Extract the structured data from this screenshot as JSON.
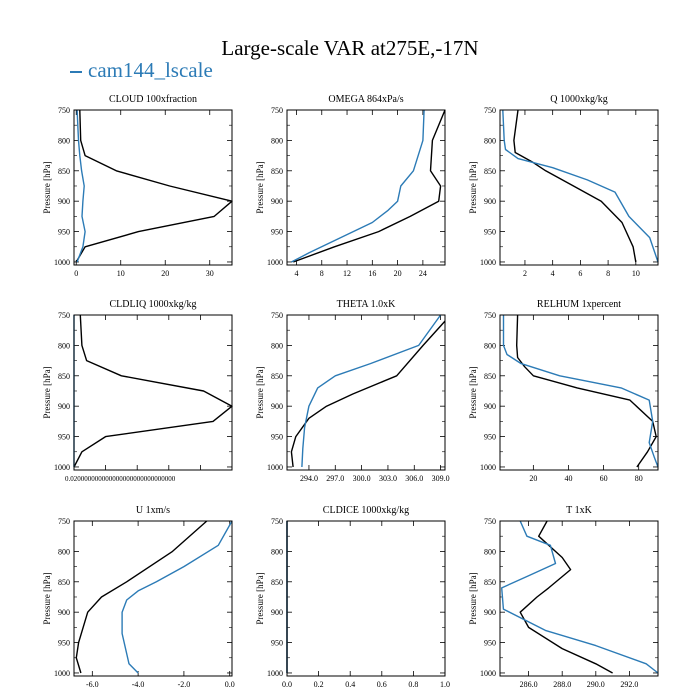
{
  "title": "Large-scale VAR at275E,-17N",
  "legend_label": "cam144_lscale",
  "colors": {
    "black_series": "#000000",
    "blue_series": "#2c7bb6"
  },
  "chart_data": [
    {
      "type": "line",
      "title": "CLOUD  100xfraction",
      "ylabel": "Pressure [hPa]",
      "ylim": [
        1005,
        750
      ],
      "yticks": [
        750,
        800,
        850,
        900,
        950,
        1000
      ],
      "xlim": [
        -0.5,
        35
      ],
      "xticks": [
        0,
        10,
        20,
        30
      ],
      "xticklabels": [
        "0",
        "10",
        "20",
        "30"
      ],
      "series": [
        {
          "name": "black",
          "color": "#000000",
          "points": [
            [
              0.8,
              750
            ],
            [
              1,
              800
            ],
            [
              2,
              825
            ],
            [
              9,
              850
            ],
            [
              21,
              875
            ],
            [
              35,
              900
            ],
            [
              31,
              925
            ],
            [
              14,
              950
            ],
            [
              2,
              975
            ],
            [
              0,
              1000
            ]
          ]
        },
        {
          "name": "blue",
          "color": "#2c7bb6",
          "points": [
            [
              0.2,
              750
            ],
            [
              0.5,
              800
            ],
            [
              0.8,
              825
            ],
            [
              1.2,
              850
            ],
            [
              1.8,
              875
            ],
            [
              1.5,
              900
            ],
            [
              1.3,
              925
            ],
            [
              2,
              950
            ],
            [
              1.5,
              975
            ],
            [
              0.2,
              1000
            ]
          ]
        }
      ]
    },
    {
      "type": "line",
      "title": "OMEGA  864xPa/s",
      "ylabel": "Pressure [hPa]",
      "ylim": [
        1005,
        750
      ],
      "yticks": [
        750,
        800,
        850,
        900,
        950,
        1000
      ],
      "xlim": [
        2.5,
        27.5
      ],
      "xticks": [
        4,
        8,
        12,
        16,
        20,
        24
      ],
      "xticklabels": [
        "4",
        "8",
        "12",
        "16",
        "20",
        "24"
      ],
      "series": [
        {
          "name": "black",
          "color": "#000000",
          "points": [
            [
              27.5,
              750
            ],
            [
              25.5,
              800
            ],
            [
              25.2,
              850
            ],
            [
              26.8,
              875
            ],
            [
              26.5,
              900
            ],
            [
              22,
              925
            ],
            [
              17,
              950
            ],
            [
              10,
              975
            ],
            [
              3.5,
              1000
            ]
          ]
        },
        {
          "name": "blue",
          "color": "#2c7bb6",
          "points": [
            [
              24.2,
              750
            ],
            [
              24,
              800
            ],
            [
              22.5,
              850
            ],
            [
              20.5,
              875
            ],
            [
              20,
              900
            ],
            [
              18.5,
              915
            ],
            [
              16,
              935
            ],
            [
              11,
              960
            ],
            [
              6,
              985
            ],
            [
              3.2,
              1000
            ]
          ]
        }
      ]
    },
    {
      "type": "line",
      "title": "Q  1000xkg/kg",
      "ylabel": "Pressure [hPa]",
      "ylim": [
        1005,
        750
      ],
      "yticks": [
        750,
        800,
        850,
        900,
        950,
        1000
      ],
      "xlim": [
        0.2,
        11.6
      ],
      "xticks": [
        2,
        4,
        6,
        8,
        10
      ],
      "xticklabels": [
        "2",
        "4",
        "6",
        "8",
        "10"
      ],
      "series": [
        {
          "name": "black",
          "color": "#000000",
          "points": [
            [
              1.5,
              750
            ],
            [
              1.2,
              800
            ],
            [
              1.3,
              820
            ],
            [
              2.5,
              835
            ],
            [
              3.5,
              850
            ],
            [
              5.5,
              875
            ],
            [
              7.5,
              900
            ],
            [
              9,
              935
            ],
            [
              9.8,
              975
            ],
            [
              10,
              1000
            ]
          ]
        },
        {
          "name": "blue",
          "color": "#2c7bb6",
          "points": [
            [
              0.4,
              750
            ],
            [
              0.5,
              800
            ],
            [
              0.6,
              815
            ],
            [
              1.5,
              830
            ],
            [
              4,
              845
            ],
            [
              6.5,
              865
            ],
            [
              8.5,
              885
            ],
            [
              9.5,
              925
            ],
            [
              11,
              960
            ],
            [
              11.6,
              1000
            ]
          ]
        }
      ]
    },
    {
      "type": "line",
      "title": "CLDLIQ  1000xkg/kg",
      "ylabel": "Pressure [hPa]",
      "ylim": [
        1005,
        750
      ],
      "yticks": [
        750,
        800,
        850,
        900,
        950,
        1000
      ],
      "xlim": [
        0,
        1
      ],
      "xticks": [
        0,
        0.2,
        0.4,
        0.6,
        0.8,
        1.0
      ],
      "xticklabels": [
        "0.020000000000000000000000000000",
        "",
        "",
        "",
        "",
        ""
      ],
      "series": [
        {
          "name": "black",
          "color": "#000000",
          "points": [
            [
              0.04,
              750
            ],
            [
              0.05,
              800
            ],
            [
              0.08,
              825
            ],
            [
              0.3,
              850
            ],
            [
              0.82,
              875
            ],
            [
              1.0,
              900
            ],
            [
              0.88,
              925
            ],
            [
              0.2,
              950
            ],
            [
              0.05,
              975
            ],
            [
              0,
              1000
            ]
          ]
        },
        {
          "name": "blue",
          "color": "#2c7bb6",
          "points": [
            [
              0,
              750
            ],
            [
              0,
              1000
            ]
          ]
        }
      ]
    },
    {
      "type": "line",
      "title": "THETA  1.0xK",
      "ylabel": "Pressure [hPa]",
      "ylim": [
        1005,
        750
      ],
      "yticks": [
        750,
        800,
        850,
        900,
        950,
        1000
      ],
      "xlim": [
        291.5,
        309.5
      ],
      "xticks": [
        294,
        297,
        300,
        303,
        306,
        309
      ],
      "xticklabels": [
        "294.0",
        "297.0",
        "300.0",
        "303.0",
        "306.0",
        "309.0"
      ],
      "series": [
        {
          "name": "black",
          "color": "#000000",
          "points": [
            [
              309.5,
              760
            ],
            [
              307,
              800
            ],
            [
              304,
              850
            ],
            [
              299,
              880
            ],
            [
              296,
              900
            ],
            [
              294,
              920
            ],
            [
              292.5,
              950
            ],
            [
              292,
              975
            ],
            [
              292.2,
              1000
            ]
          ]
        },
        {
          "name": "blue",
          "color": "#2c7bb6",
          "points": [
            [
              309,
              750
            ],
            [
              306.5,
              800
            ],
            [
              301,
              830
            ],
            [
              297,
              850
            ],
            [
              295,
              870
            ],
            [
              294,
              900
            ],
            [
              293.5,
              935
            ],
            [
              293.3,
              970
            ],
            [
              293.2,
              1000
            ]
          ]
        }
      ]
    },
    {
      "type": "line",
      "title": "RELHUM  1xpercent",
      "ylabel": "Pressure [hPa]",
      "ylim": [
        1005,
        750
      ],
      "yticks": [
        750,
        800,
        850,
        900,
        950,
        1000
      ],
      "xlim": [
        1,
        91
      ],
      "xticks": [
        20,
        40,
        60,
        80
      ],
      "xticklabels": [
        "20",
        "40",
        "60",
        "80"
      ],
      "series": [
        {
          "name": "black",
          "color": "#000000",
          "points": [
            [
              11,
              750
            ],
            [
              10.5,
              800
            ],
            [
              11,
              820
            ],
            [
              15,
              835
            ],
            [
              20,
              850
            ],
            [
              45,
              870
            ],
            [
              75,
              890
            ],
            [
              88,
              925
            ],
            [
              90,
              950
            ],
            [
              85,
              975
            ],
            [
              79,
              1000
            ]
          ]
        },
        {
          "name": "blue",
          "color": "#2c7bb6",
          "points": [
            [
              3,
              750
            ],
            [
              3,
              800
            ],
            [
              5,
              815
            ],
            [
              13,
              830
            ],
            [
              35,
              850
            ],
            [
              70,
              870
            ],
            [
              86,
              890
            ],
            [
              88,
              925
            ],
            [
              86,
              960
            ],
            [
              89,
              985
            ],
            [
              91,
              1000
            ]
          ]
        }
      ]
    },
    {
      "type": "line",
      "title": "U  1xm/s",
      "ylabel": "Pressure [hPa]",
      "ylim": [
        1005,
        750
      ],
      "yticks": [
        750,
        800,
        850,
        900,
        950,
        1000
      ],
      "xlim": [
        -6.8,
        0.1
      ],
      "xticks": [
        -6,
        -4,
        -2,
        0
      ],
      "xticklabels": [
        "-6.0",
        "-4.0",
        "-2.0",
        "0.0"
      ],
      "series": [
        {
          "name": "black",
          "color": "#000000",
          "points": [
            [
              -1,
              750
            ],
            [
              -2.5,
              800
            ],
            [
              -4.5,
              850
            ],
            [
              -5.6,
              875
            ],
            [
              -6.2,
              900
            ],
            [
              -6.6,
              950
            ],
            [
              -6.7,
              975
            ],
            [
              -6.5,
              1000
            ]
          ]
        },
        {
          "name": "blue",
          "color": "#2c7bb6",
          "points": [
            [
              0.1,
              750
            ],
            [
              -0.5,
              790
            ],
            [
              -2,
              825
            ],
            [
              -3.2,
              850
            ],
            [
              -4,
              865
            ],
            [
              -4.5,
              880
            ],
            [
              -4.7,
              900
            ],
            [
              -4.7,
              935
            ],
            [
              -4.4,
              985
            ],
            [
              -4,
              1000
            ]
          ]
        }
      ]
    },
    {
      "type": "line",
      "title": "CLDICE  1000xkg/kg",
      "ylabel": "Pressure [hPa]",
      "ylim": [
        1005,
        750
      ],
      "yticks": [
        750,
        800,
        850,
        900,
        950,
        1000
      ],
      "xlim": [
        0,
        1
      ],
      "xticks": [
        0,
        0.2,
        0.4,
        0.6,
        0.8,
        1.0
      ],
      "xticklabels": [
        "0.0",
        "0.2",
        "0.4",
        "0.6",
        "0.8",
        "1.0"
      ],
      "series": [
        {
          "name": "black",
          "color": "#000000",
          "points": [
            [
              0,
              750
            ],
            [
              0,
              1000
            ]
          ]
        },
        {
          "name": "blue",
          "color": "#2c7bb6",
          "points": [
            [
              0,
              750
            ],
            [
              0,
              1000
            ]
          ]
        }
      ]
    },
    {
      "type": "line",
      "title": "T  1xK",
      "ylabel": "Pressure [hPa]",
      "ylim": [
        1005,
        750
      ],
      "yticks": [
        750,
        800,
        850,
        900,
        950,
        1000
      ],
      "xlim": [
        284.3,
        293.7
      ],
      "xticks": [
        286,
        288,
        290,
        292
      ],
      "xticklabels": [
        "286.0",
        "288.0",
        "290.0",
        "292.0"
      ],
      "series": [
        {
          "name": "black",
          "color": "#000000",
          "points": [
            [
              287.1,
              750
            ],
            [
              286.6,
              775
            ],
            [
              288,
              810
            ],
            [
              288.5,
              830
            ],
            [
              287.2,
              860
            ],
            [
              286.5,
              875
            ],
            [
              285.5,
              900
            ],
            [
              286,
              925
            ],
            [
              288,
              960
            ],
            [
              290,
              985
            ],
            [
              291,
              1000
            ]
          ]
        },
        {
          "name": "blue",
          "color": "#2c7bb6",
          "points": [
            [
              285.5,
              750
            ],
            [
              285.9,
              775
            ],
            [
              287.3,
              790
            ],
            [
              287.6,
              820
            ],
            [
              286,
              840
            ],
            [
              284.4,
              860
            ],
            [
              284.5,
              895
            ],
            [
              287,
              930
            ],
            [
              290,
              955
            ],
            [
              293,
              985
            ],
            [
              293.7,
              1000
            ]
          ]
        }
      ]
    }
  ]
}
